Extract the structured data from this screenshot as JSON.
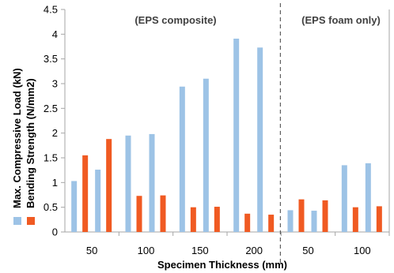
{
  "chart_data": {
    "type": "bar",
    "ylim": [
      0,
      4.5
    ],
    "yticks": [
      "0",
      "0.5",
      "1",
      "1.5",
      "2",
      "2.5",
      "3",
      "3.5",
      "4",
      "4.5"
    ],
    "xlabel": "Specimen Thickness (mm)",
    "ylabel_series": [
      "Max. Compressive Load (kN)",
      "Bending Strength (N/mm2)"
    ],
    "annotations": [
      "(EPS composite)",
      "(EPS foam only)"
    ],
    "groups": [
      {
        "label": "50",
        "pairs": [
          {
            "load": 1.03,
            "strength": 1.55
          },
          {
            "load": 1.26,
            "strength": 1.88
          }
        ]
      },
      {
        "label": "100",
        "pairs": [
          {
            "load": 1.95,
            "strength": 0.73
          },
          {
            "load": 1.98,
            "strength": 0.74
          }
        ]
      },
      {
        "label": "150",
        "pairs": [
          {
            "load": 2.94,
            "strength": 0.5
          },
          {
            "load": 3.1,
            "strength": 0.51
          }
        ]
      },
      {
        "label": "200",
        "pairs": [
          {
            "load": 3.91,
            "strength": 0.37
          },
          {
            "load": 3.73,
            "strength": 0.35
          }
        ]
      },
      {
        "label": "50",
        "pairs": [
          {
            "load": 0.44,
            "strength": 0.66
          },
          {
            "load": 0.43,
            "strength": 0.64
          }
        ]
      },
      {
        "label": "100",
        "pairs": [
          {
            "load": 1.35,
            "strength": 0.5
          },
          {
            "load": 1.39,
            "strength": 0.52
          }
        ]
      }
    ],
    "series": [
      {
        "name": "Max. Compressive Load (kN)",
        "color": "#9DC3E6"
      },
      {
        "name": "Bending Strength (N/mm2)",
        "color": "#F05A22"
      }
    ],
    "grid": false,
    "divider": "dashed vertical line between EPS composite and EPS foam only groups"
  }
}
